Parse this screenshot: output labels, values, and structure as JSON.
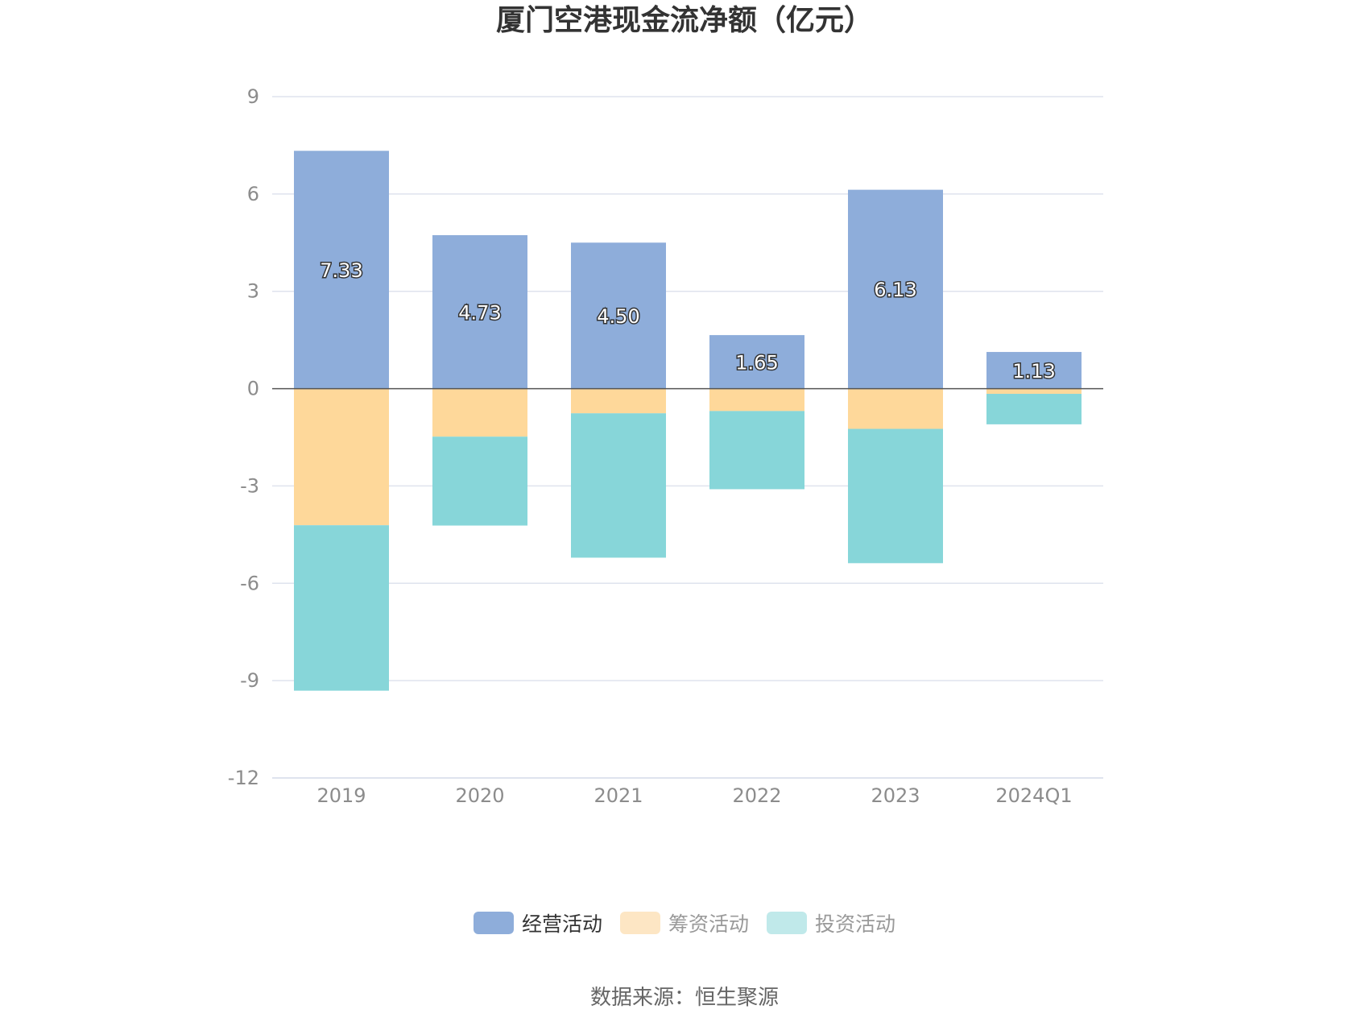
{
  "title": "厦门空港现金流净额（亿元）",
  "source": "数据来源：恒生聚源",
  "colors": {
    "operating": "#8eadda",
    "financing": "#fed89a",
    "investing": "#87d6d9",
    "legend_financing": "#fde6c4",
    "legend_investing": "#c0e9ea",
    "grid": "#dfe3ee",
    "zero_line": "#555555"
  },
  "legend": [
    {
      "label": "经营活动",
      "color": "#8eadda",
      "text_color": "#333333"
    },
    {
      "label": "筹资活动",
      "color": "#fde6c4",
      "text_color": "#999999"
    },
    {
      "label": "投资活动",
      "color": "#c0e9ea",
      "text_color": "#999999"
    }
  ],
  "chart_data": {
    "type": "bar",
    "stacked": true,
    "title": "厦门空港现金流净额（亿元）",
    "categories": [
      "2019",
      "2020",
      "2021",
      "2022",
      "2023",
      "2024Q1"
    ],
    "ylim": [
      -12,
      9
    ],
    "yticks": [
      9,
      6,
      3,
      0,
      -3,
      -6,
      -9,
      -12
    ],
    "grid": true,
    "legend_position": "bottom",
    "series": [
      {
        "name": "经营活动",
        "values": [
          7.33,
          4.73,
          4.5,
          1.65,
          6.13,
          1.13
        ],
        "labels": [
          "7.33",
          "4.73",
          "4.50",
          "1.65",
          "6.13",
          "1.13"
        ]
      },
      {
        "name": "筹资活动",
        "values": [
          -4.21,
          -1.48,
          -0.76,
          -0.69,
          -1.24,
          -0.16
        ]
      },
      {
        "name": "投资活动",
        "values": [
          -5.1,
          -2.74,
          -4.45,
          -2.41,
          -4.14,
          -0.94
        ]
      }
    ]
  }
}
